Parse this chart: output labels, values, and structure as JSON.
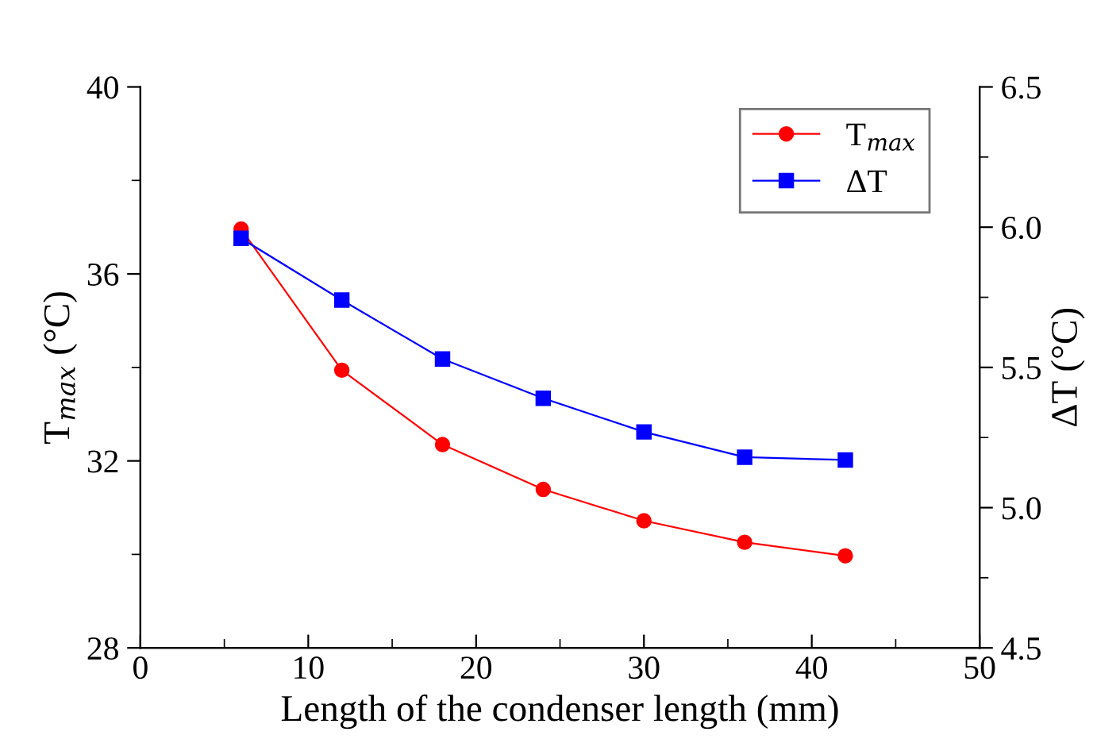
{
  "chart_data": {
    "type": "line",
    "xlabel": "Length of the condenser length (mm)",
    "ylabel": "T$_{max}$ (°C)",
    "y2label": "ΔT (°C)",
    "x": [
      6,
      12,
      18,
      24,
      30,
      36,
      42
    ],
    "series": [
      {
        "name": "T$_{max}$",
        "color": "#ff0000",
        "marker": "circle",
        "values": [
          36.96,
          33.94,
          32.35,
          31.39,
          30.72,
          30.26,
          29.97
        ]
      },
      {
        "name": "ΔT",
        "color": "#0000ff",
        "marker": "square",
        "axis": "y2",
        "values": [
          5.96,
          5.74,
          5.53,
          5.39,
          5.27,
          5.18,
          5.17
        ]
      }
    ],
    "xlim": [
      0,
      50
    ],
    "xticks": [
      0,
      10,
      20,
      30,
      40,
      50
    ],
    "ylim": [
      28,
      40
    ],
    "yticks": [
      28,
      32,
      36,
      40
    ],
    "y2lim": [
      4.5,
      6.5
    ],
    "y2ticks": [
      {
        "value": 4.5,
        "label": "4.5"
      },
      {
        "value": 5.0,
        "label": "5.0"
      },
      {
        "value": 5.5,
        "label": "5.5"
      },
      {
        "value": 6.0,
        "label": "6.0"
      },
      {
        "value": 6.5,
        "label": "6.5"
      }
    ],
    "grid": false,
    "legend": "top right",
    "line_style": "solid"
  }
}
